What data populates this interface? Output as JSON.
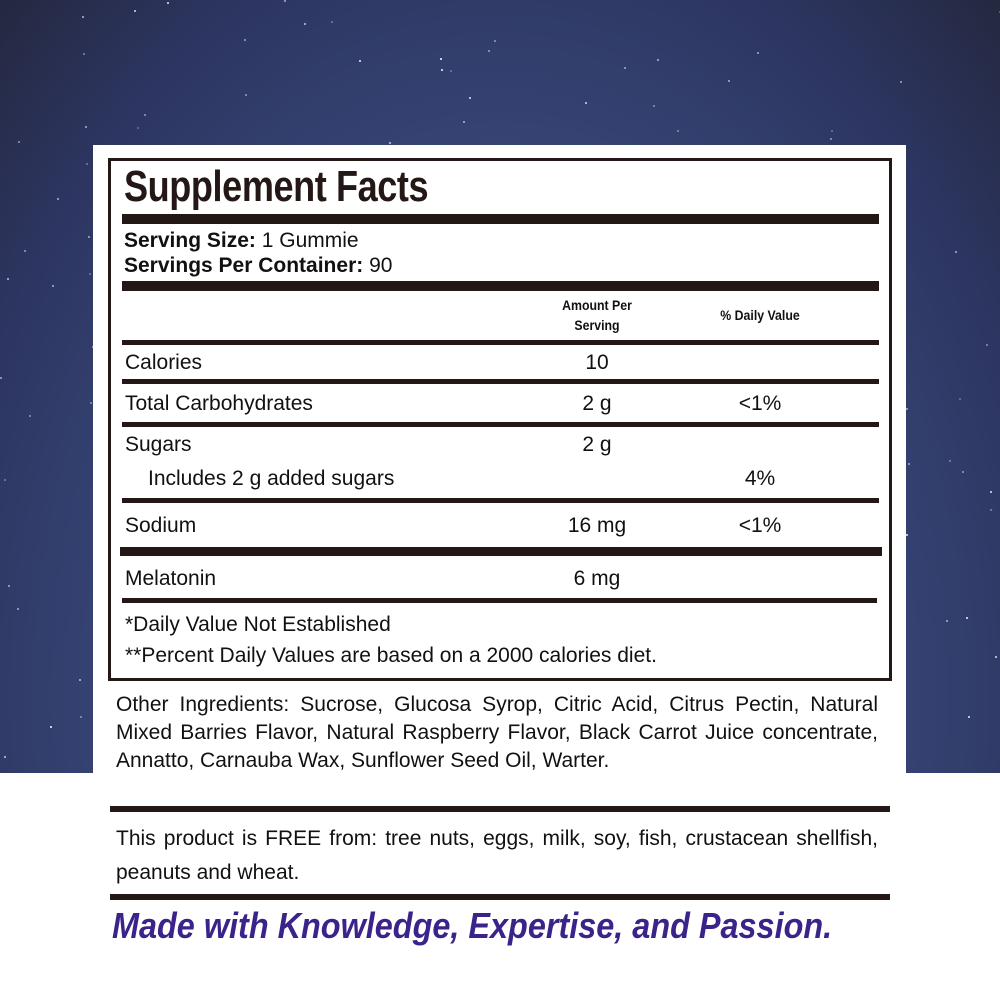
{
  "title": "Supplement Facts",
  "serving_size": {
    "label": "Serving Size:",
    "value": "1 Gummie"
  },
  "servings_per_container": {
    "label": "Servings Per Container:",
    "value": "90"
  },
  "columns": {
    "amount_line1": "Amount Per",
    "amount_line2": "Serving",
    "daily_value": "% Daily Value"
  },
  "rows": [
    {
      "name": "Calories",
      "amount": "10",
      "dv": ""
    },
    {
      "name": "Total Carbohydrates",
      "amount": "2 g",
      "dv": "<1%"
    },
    {
      "name": "Sugars",
      "amount": "2 g",
      "dv": ""
    },
    {
      "name": "Includes 2 g added sugars",
      "amount": "",
      "dv": "4%"
    },
    {
      "name": "Sodium",
      "amount": "16 mg",
      "dv": "<1%"
    },
    {
      "name": "Melatonin",
      "amount": "6 mg",
      "dv": ""
    }
  ],
  "footnotes": [
    "*Daily Value Not Established",
    "**Percent Daily Values are based on a 2000 calories diet."
  ],
  "other_ingredients": "Other Ingredients: Sucrose, Glucosa Syrop, Citric Acid, Citrus Pectin, Natural Mixed Barries Flavor, Natural Raspberry Flavor, Black Carrot Juice concentrate, Annatto, Carnauba Wax, Sunflower Seed Oil, Warter.",
  "allergen_free": "This product is FREE from: tree nuts, eggs, milk, soy, fish, crustacean shellfish, peanuts and wheat.",
  "tagline": "Made with Knowledge, Expertise, and Passion.",
  "colors": {
    "label_ink": "#231815",
    "tagline": "#3b2389",
    "background_sky": "#3a4a7c"
  }
}
